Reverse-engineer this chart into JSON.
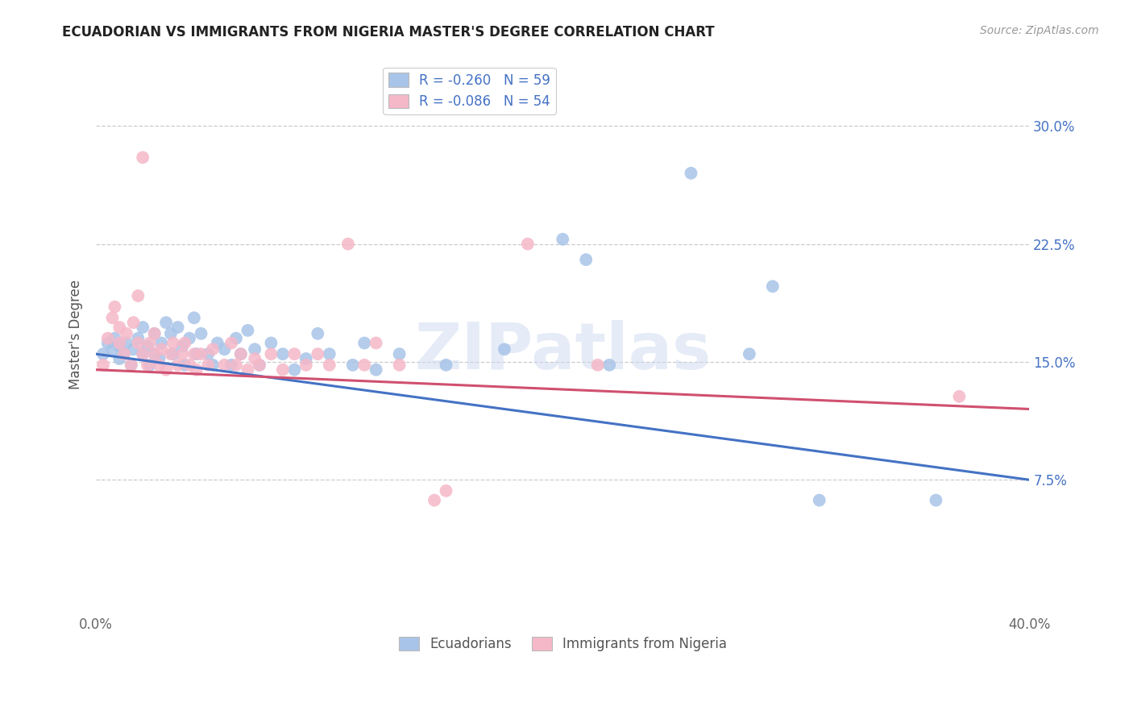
{
  "title": "ECUADORIAN VS IMMIGRANTS FROM NIGERIA MASTER'S DEGREE CORRELATION CHART",
  "source": "Source: ZipAtlas.com",
  "ylabel": "Master's Degree",
  "yticks": [
    0.075,
    0.15,
    0.225,
    0.3
  ],
  "ytick_labels": [
    "7.5%",
    "15.0%",
    "22.5%",
    "30.0%"
  ],
  "xlim": [
    0.0,
    0.4
  ],
  "ylim": [
    -0.01,
    0.345
  ],
  "legend_blue_label": "R = -0.260   N = 59",
  "legend_pink_label": "R = -0.086   N = 54",
  "watermark": "ZIPatlas",
  "blue_color": "#a8c4e8",
  "pink_color": "#f5b8c8",
  "line_blue": "#4472c4",
  "line_pink": "#d05070",
  "blue_scatter": [
    [
      0.003,
      0.155
    ],
    [
      0.005,
      0.162
    ],
    [
      0.007,
      0.158
    ],
    [
      0.008,
      0.165
    ],
    [
      0.01,
      0.152
    ],
    [
      0.01,
      0.16
    ],
    [
      0.012,
      0.155
    ],
    [
      0.013,
      0.162
    ],
    [
      0.015,
      0.148
    ],
    [
      0.016,
      0.158
    ],
    [
      0.018,
      0.165
    ],
    [
      0.02,
      0.155
    ],
    [
      0.02,
      0.172
    ],
    [
      0.022,
      0.16
    ],
    [
      0.023,
      0.148
    ],
    [
      0.025,
      0.155
    ],
    [
      0.025,
      0.168
    ],
    [
      0.027,
      0.152
    ],
    [
      0.028,
      0.162
    ],
    [
      0.03,
      0.175
    ],
    [
      0.032,
      0.168
    ],
    [
      0.033,
      0.155
    ],
    [
      0.035,
      0.172
    ],
    [
      0.037,
      0.16
    ],
    [
      0.038,
      0.148
    ],
    [
      0.04,
      0.165
    ],
    [
      0.042,
      0.178
    ],
    [
      0.043,
      0.155
    ],
    [
      0.045,
      0.168
    ],
    [
      0.048,
      0.155
    ],
    [
      0.05,
      0.148
    ],
    [
      0.052,
      0.162
    ],
    [
      0.055,
      0.158
    ],
    [
      0.058,
      0.148
    ],
    [
      0.06,
      0.165
    ],
    [
      0.062,
      0.155
    ],
    [
      0.065,
      0.17
    ],
    [
      0.068,
      0.158
    ],
    [
      0.07,
      0.148
    ],
    [
      0.075,
      0.162
    ],
    [
      0.08,
      0.155
    ],
    [
      0.085,
      0.145
    ],
    [
      0.09,
      0.152
    ],
    [
      0.095,
      0.168
    ],
    [
      0.1,
      0.155
    ],
    [
      0.11,
      0.148
    ],
    [
      0.115,
      0.162
    ],
    [
      0.12,
      0.145
    ],
    [
      0.13,
      0.155
    ],
    [
      0.15,
      0.148
    ],
    [
      0.175,
      0.158
    ],
    [
      0.2,
      0.228
    ],
    [
      0.21,
      0.215
    ],
    [
      0.22,
      0.148
    ],
    [
      0.255,
      0.27
    ],
    [
      0.28,
      0.155
    ],
    [
      0.29,
      0.198
    ],
    [
      0.31,
      0.062
    ],
    [
      0.36,
      0.062
    ]
  ],
  "pink_scatter": [
    [
      0.003,
      0.148
    ],
    [
      0.005,
      0.165
    ],
    [
      0.007,
      0.178
    ],
    [
      0.008,
      0.185
    ],
    [
      0.01,
      0.162
    ],
    [
      0.01,
      0.172
    ],
    [
      0.012,
      0.155
    ],
    [
      0.013,
      0.168
    ],
    [
      0.015,
      0.148
    ],
    [
      0.016,
      0.175
    ],
    [
      0.018,
      0.162
    ],
    [
      0.018,
      0.192
    ],
    [
      0.02,
      0.155
    ],
    [
      0.02,
      0.28
    ],
    [
      0.022,
      0.148
    ],
    [
      0.023,
      0.162
    ],
    [
      0.025,
      0.155
    ],
    [
      0.025,
      0.168
    ],
    [
      0.027,
      0.148
    ],
    [
      0.028,
      0.158
    ],
    [
      0.03,
      0.145
    ],
    [
      0.032,
      0.155
    ],
    [
      0.033,
      0.162
    ],
    [
      0.035,
      0.148
    ],
    [
      0.037,
      0.155
    ],
    [
      0.038,
      0.162
    ],
    [
      0.04,
      0.148
    ],
    [
      0.042,
      0.155
    ],
    [
      0.043,
      0.145
    ],
    [
      0.045,
      0.155
    ],
    [
      0.048,
      0.148
    ],
    [
      0.05,
      0.158
    ],
    [
      0.055,
      0.148
    ],
    [
      0.058,
      0.162
    ],
    [
      0.06,
      0.148
    ],
    [
      0.062,
      0.155
    ],
    [
      0.065,
      0.145
    ],
    [
      0.068,
      0.152
    ],
    [
      0.07,
      0.148
    ],
    [
      0.075,
      0.155
    ],
    [
      0.08,
      0.145
    ],
    [
      0.085,
      0.155
    ],
    [
      0.09,
      0.148
    ],
    [
      0.095,
      0.155
    ],
    [
      0.1,
      0.148
    ],
    [
      0.108,
      0.225
    ],
    [
      0.115,
      0.148
    ],
    [
      0.12,
      0.162
    ],
    [
      0.13,
      0.148
    ],
    [
      0.145,
      0.062
    ],
    [
      0.15,
      0.068
    ],
    [
      0.185,
      0.225
    ],
    [
      0.215,
      0.148
    ],
    [
      0.37,
      0.128
    ]
  ]
}
